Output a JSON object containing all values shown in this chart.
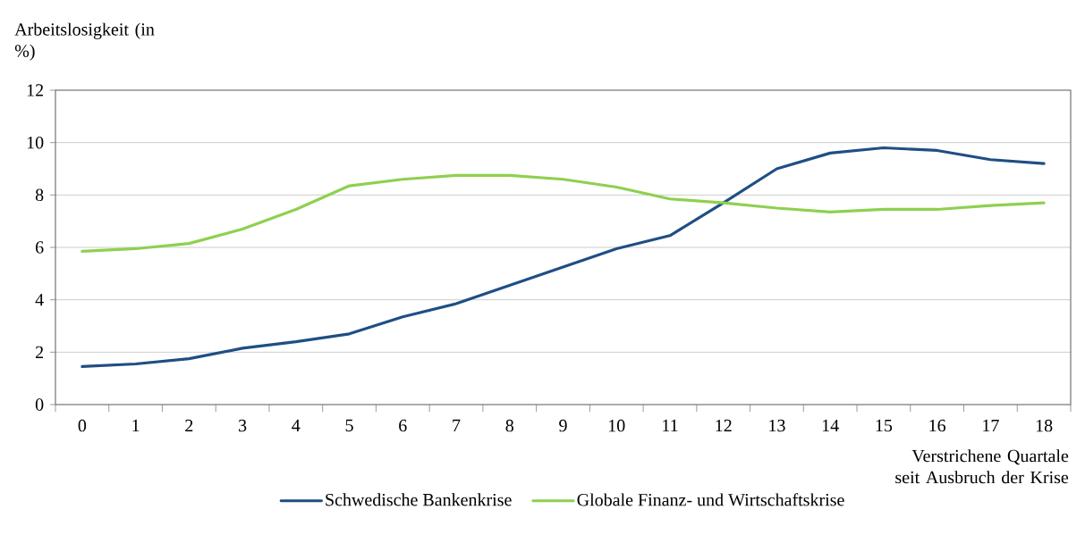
{
  "chart_data": {
    "type": "line",
    "ylabel": "Arbeitslosigkeit (in %)",
    "xlabel": "Verstrichene Quartale seit Ausbruch der Krise",
    "categories": [
      "0",
      "1",
      "2",
      "3",
      "4",
      "5",
      "6",
      "7",
      "8",
      "9",
      "10",
      "11",
      "12",
      "13",
      "14",
      "15",
      "16",
      "17",
      "18"
    ],
    "series": [
      {
        "name": "Schwedische Bankenkrise",
        "color": "#1f4e84",
        "values": [
          1.45,
          1.55,
          1.75,
          2.15,
          2.4,
          2.7,
          3.35,
          3.85,
          4.55,
          5.25,
          5.95,
          6.45,
          7.7,
          9.0,
          9.6,
          9.8,
          9.7,
          9.35,
          9.2
        ]
      },
      {
        "name": "Globale Finanz- und Wirtschaftskrise",
        "color": "#8ed04f",
        "values": [
          5.85,
          5.95,
          6.15,
          6.7,
          7.45,
          8.35,
          8.6,
          8.75,
          8.75,
          8.6,
          8.3,
          7.85,
          7.7,
          7.5,
          7.35,
          7.45,
          7.45,
          7.6,
          7.7
        ]
      }
    ],
    "ylim": [
      0,
      12
    ],
    "yticks": [
      0,
      2,
      4,
      6,
      8,
      10,
      12
    ],
    "grid": "y",
    "legend": "bottom",
    "marker": "none",
    "line_style": "solid"
  }
}
